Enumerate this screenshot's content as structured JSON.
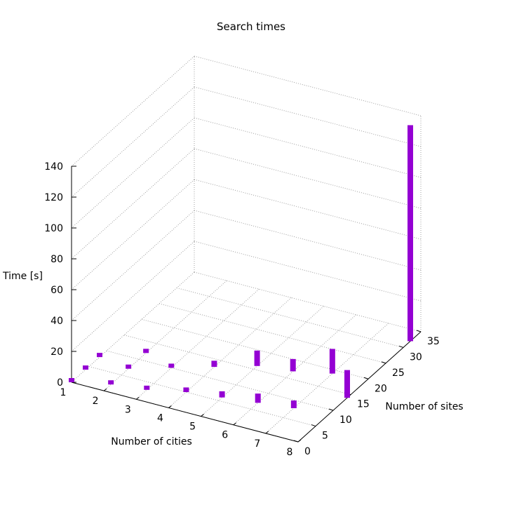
{
  "chart_data": {
    "type": "bar",
    "title": "Search times",
    "xlabel": "Number of cities",
    "ylabel": "Number of sites",
    "zlabel": "Time [s]",
    "x_ticks": [
      "1",
      "2",
      "3",
      "4",
      "5",
      "6",
      "7",
      "8"
    ],
    "y_ticks": [
      "0",
      "5",
      "10",
      "15",
      "20",
      "25",
      "30",
      "35"
    ],
    "z_ticks": [
      "0",
      "20",
      "40",
      "60",
      "80",
      "100",
      "120",
      "140"
    ],
    "xlim": [
      1,
      8
    ],
    "ylim": [
      0,
      35
    ],
    "zlim": [
      0,
      140
    ],
    "grid": true,
    "color": "#9400d3",
    "points": [
      {
        "x": 1,
        "y": 0,
        "z": 2
      },
      {
        "x": 1,
        "y": 4,
        "z": 2
      },
      {
        "x": 1,
        "y": 8,
        "z": 2
      },
      {
        "x": 2,
        "y": 2,
        "z": 2
      },
      {
        "x": 2,
        "y": 7,
        "z": 2
      },
      {
        "x": 2,
        "y": 12,
        "z": 2
      },
      {
        "x": 3,
        "y": 3,
        "z": 2
      },
      {
        "x": 3,
        "y": 10,
        "z": 2
      },
      {
        "x": 4,
        "y": 5,
        "z": 3
      },
      {
        "x": 4,
        "y": 13,
        "z": 4
      },
      {
        "x": 5,
        "y": 6,
        "z": 4
      },
      {
        "x": 5,
        "y": 16,
        "z": 10
      },
      {
        "x": 6,
        "y": 7,
        "z": 6
      },
      {
        "x": 6,
        "y": 17,
        "z": 8
      },
      {
        "x": 7,
        "y": 8,
        "z": 5
      },
      {
        "x": 7,
        "y": 19,
        "z": 16
      },
      {
        "x": 8,
        "y": 14,
        "z": 18
      },
      {
        "x": 8,
        "y": 32,
        "z": 140
      }
    ]
  }
}
